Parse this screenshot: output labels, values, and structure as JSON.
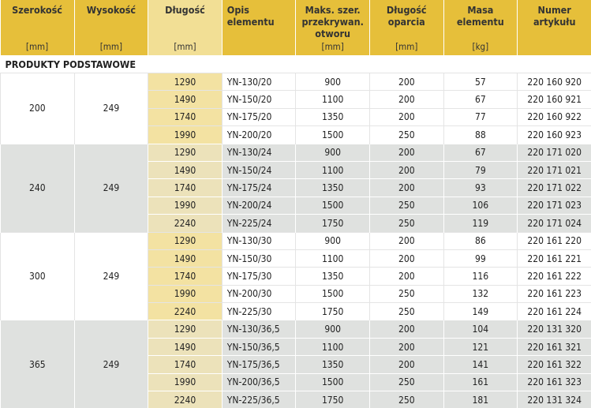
{
  "header": [
    {
      "title": "Szerokość",
      "unit": "[mm]",
      "align": "c"
    },
    {
      "title": "Wysokość",
      "unit": "[mm]",
      "align": "c"
    },
    {
      "title": "Długość",
      "unit": "[mm]",
      "align": "c",
      "light": true
    },
    {
      "title": "Opis elementu",
      "unit": "",
      "align": "l"
    },
    {
      "title": "Maks. szer. przekrywan. otworu",
      "unit": "[mm]",
      "align": "c"
    },
    {
      "title": "Długość oparcia",
      "unit": "[mm]",
      "align": "c"
    },
    {
      "title": "Masa elementu",
      "unit": "[kg]",
      "align": "c"
    },
    {
      "title": "Numer artykułu",
      "unit": "",
      "align": "c"
    }
  ],
  "section": "PRODUKTY PODSTAWOWE",
  "colors": {
    "header": "#e6bf3a",
    "length_header": "#f2df95",
    "length_cell": "#f3e2a2",
    "gray_group": "#dfe1df"
  },
  "groups": [
    {
      "width": "200",
      "height": "249",
      "rows": [
        [
          "1290",
          "YN-130/20",
          "900",
          "200",
          "57",
          "220 160 920"
        ],
        [
          "1490",
          "YN-150/20",
          "1100",
          "200",
          "67",
          "220 160 921"
        ],
        [
          "1740",
          "YN-175/20",
          "1350",
          "200",
          "77",
          "220 160 922"
        ],
        [
          "1990",
          "YN-200/20",
          "1500",
          "250",
          "88",
          "220 160 923"
        ]
      ]
    },
    {
      "width": "240",
      "height": "249",
      "rows": [
        [
          "1290",
          "YN-130/24",
          "900",
          "200",
          "67",
          "220 171 020"
        ],
        [
          "1490",
          "YN-150/24",
          "1100",
          "200",
          "79",
          "220 171 021"
        ],
        [
          "1740",
          "YN-175/24",
          "1350",
          "200",
          "93",
          "220 171 022"
        ],
        [
          "1990",
          "YN-200/24",
          "1500",
          "250",
          "106",
          "220 171 023"
        ],
        [
          "2240",
          "YN-225/24",
          "1750",
          "250",
          "119",
          "220 171 024"
        ]
      ]
    },
    {
      "width": "300",
      "height": "249",
      "rows": [
        [
          "1290",
          "YN-130/30",
          "900",
          "200",
          "86",
          "220 161 220"
        ],
        [
          "1490",
          "YN-150/30",
          "1100",
          "200",
          "99",
          "220 161 221"
        ],
        [
          "1740",
          "YN-175/30",
          "1350",
          "200",
          "116",
          "220 161 222"
        ],
        [
          "1990",
          "YN-200/30",
          "1500",
          "250",
          "132",
          "220 161 223"
        ],
        [
          "2240",
          "YN-225/30",
          "1750",
          "250",
          "149",
          "220 161 224"
        ]
      ]
    },
    {
      "width": "365",
      "height": "249",
      "rows": [
        [
          "1290",
          "YN-130/36,5",
          "900",
          "200",
          "104",
          "220 131 320"
        ],
        [
          "1490",
          "YN-150/36,5",
          "1100",
          "200",
          "121",
          "220 161 321"
        ],
        [
          "1740",
          "YN-175/36,5",
          "1350",
          "200",
          "141",
          "220 161 322"
        ],
        [
          "1990",
          "YN-200/36,5",
          "1500",
          "250",
          "161",
          "220 161 323"
        ],
        [
          "2240",
          "YN-225/36,5",
          "1750",
          "250",
          "181",
          "220 131 324"
        ]
      ]
    }
  ]
}
